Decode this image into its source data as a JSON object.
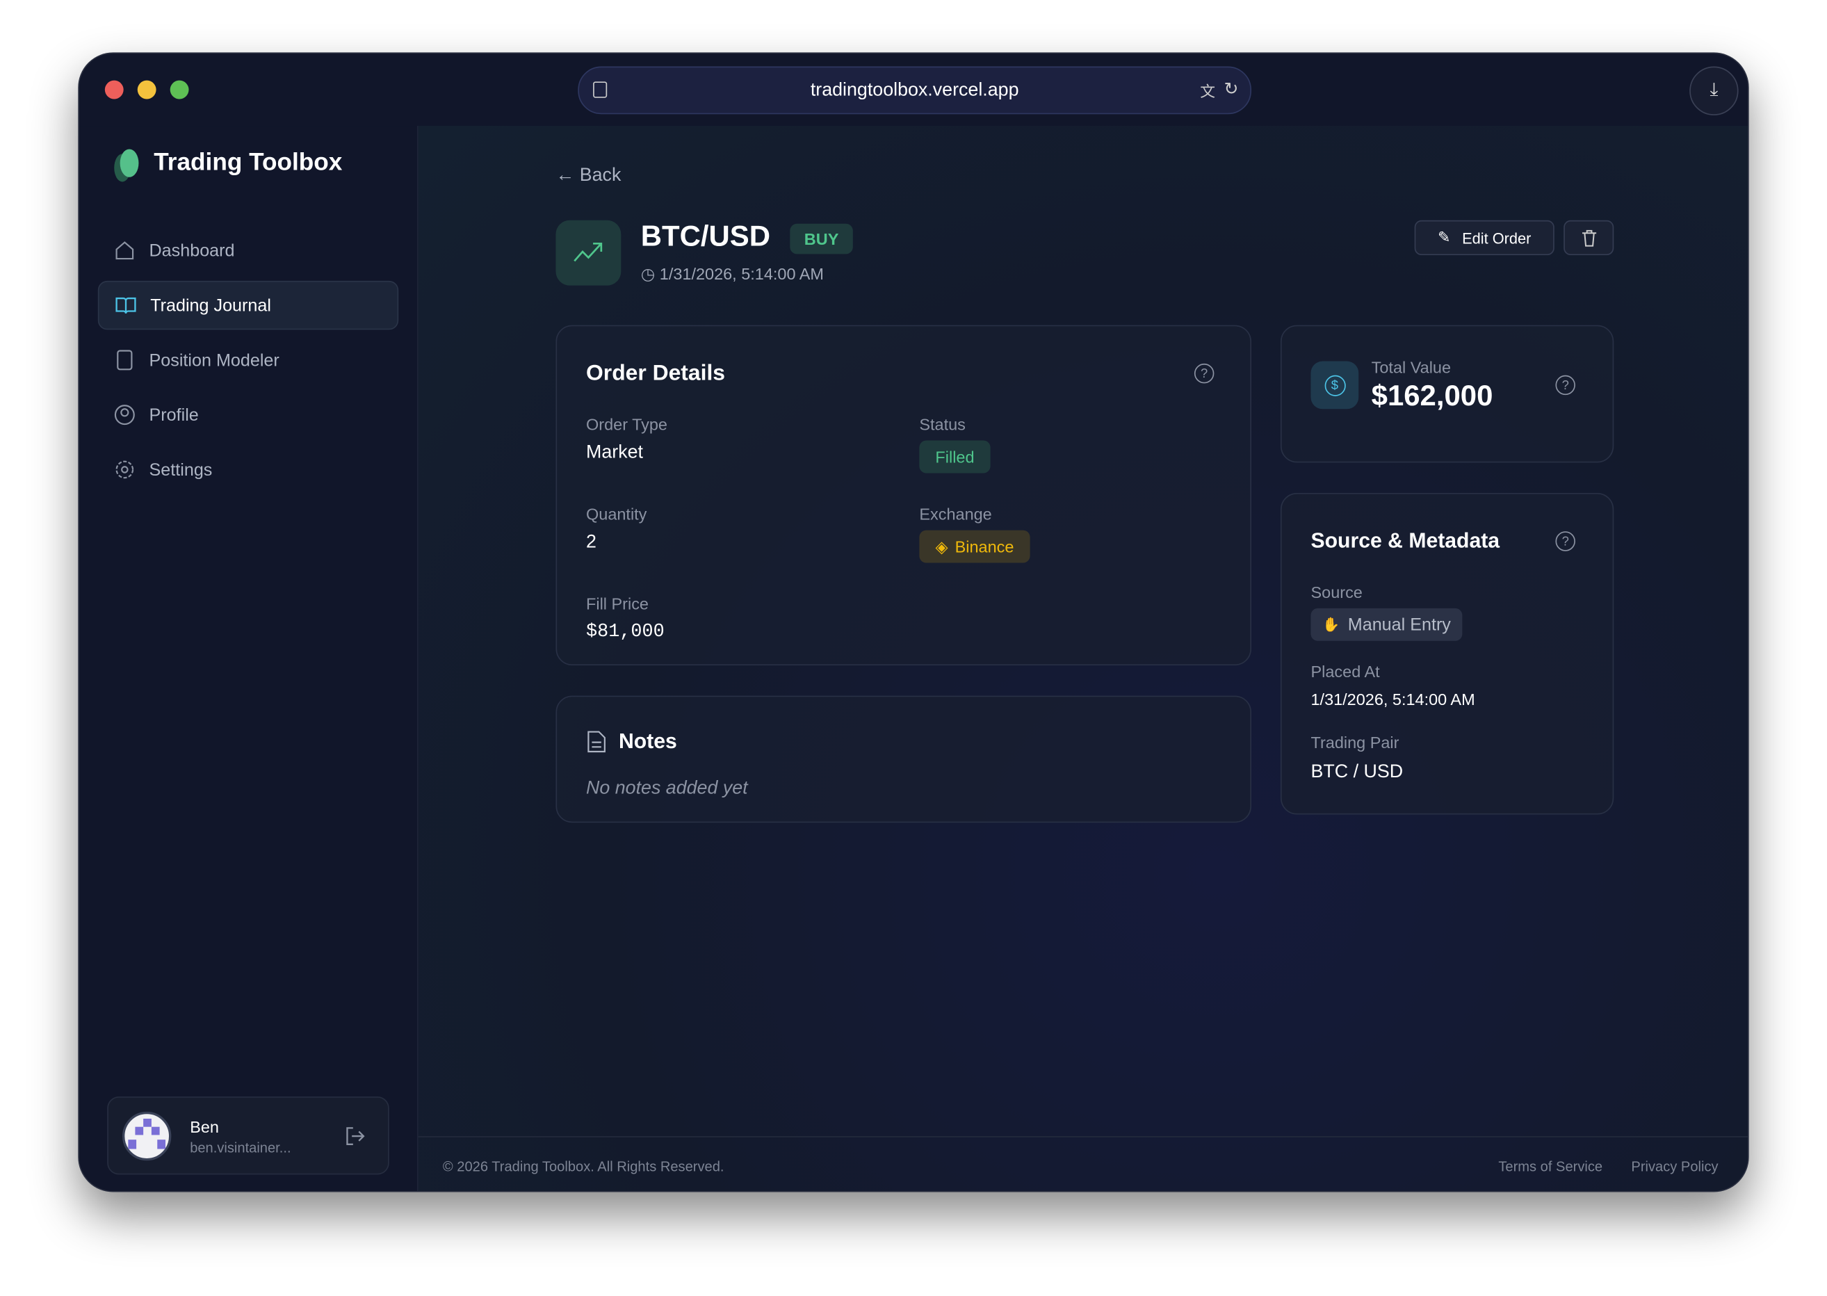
{
  "browser": {
    "url": "tradingtoolbox.vercel.app"
  },
  "sidebar": {
    "brand": "Trading Toolbox",
    "items": [
      {
        "label": "Dashboard",
        "icon": "home-icon"
      },
      {
        "label": "Trading Journal",
        "icon": "book-icon",
        "active": true
      },
      {
        "label": "Position Modeler",
        "icon": "calculator-icon"
      },
      {
        "label": "Profile",
        "icon": "user-circle-icon"
      },
      {
        "label": "Settings",
        "icon": "gear-icon"
      }
    ],
    "user": {
      "name": "Ben",
      "email": "ben.visintainer..."
    }
  },
  "header": {
    "back": "Back",
    "pair": "BTC/USD",
    "side": "BUY",
    "timestamp": "1/31/2026, 5:14:00 AM",
    "edit": "Edit Order"
  },
  "order": {
    "title": "Order Details",
    "order_type_label": "Order Type",
    "order_type": "Market",
    "status_label": "Status",
    "status": "Filled",
    "quantity_label": "Quantity",
    "quantity": "2",
    "exchange_label": "Exchange",
    "exchange": "Binance",
    "fill_price_label": "Fill Price",
    "fill_price": "$81,000"
  },
  "notes": {
    "title": "Notes",
    "empty": "No notes added yet"
  },
  "total": {
    "label": "Total Value",
    "value": "$162,000"
  },
  "meta": {
    "title": "Source & Metadata",
    "source_label": "Source",
    "source": "Manual Entry",
    "placed_label": "Placed At",
    "placed": "1/31/2026, 5:14:00 AM",
    "pair_label": "Trading Pair",
    "pair": "BTC / USD"
  },
  "footer": {
    "copyright": "© 2026 Trading Toolbox. All Rights Reserved.",
    "terms": "Terms of Service",
    "privacy": "Privacy Policy"
  },
  "colors": {
    "accent_green": "#4fc68c",
    "binance": "#f0b90b",
    "cyan": "#4cc3e6"
  }
}
